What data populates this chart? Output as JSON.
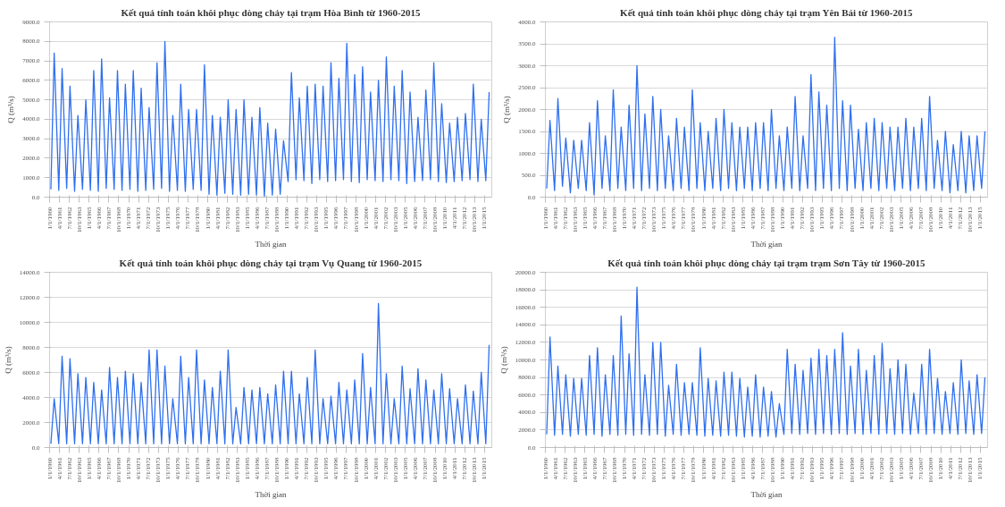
{
  "chart_data": [
    {
      "type": "line",
      "title": "Kết quả tính toán khôi phục dòng chảy tại trạm Hòa Bình từ 1960-2015",
      "xlabel": "Thời gian",
      "ylabel": "Q (m³/s)",
      "x": [
        "1960-03",
        "1960-08",
        "1961-03",
        "1961-08",
        "1962-03",
        "1962-08",
        "1963-03",
        "1963-08",
        "1964-03",
        "1964-08",
        "1965-03",
        "1965-08",
        "1966-03",
        "1966-08",
        "1967-03",
        "1967-08",
        "1968-03",
        "1968-08",
        "1969-03",
        "1969-08",
        "1970-03",
        "1970-08",
        "1971-03",
        "1971-08",
        "1972-03",
        "1972-08",
        "1973-03",
        "1973-08",
        "1974-03",
        "1974-08",
        "1975-03",
        "1975-08",
        "1976-03",
        "1976-08",
        "1977-03",
        "1977-08",
        "1978-03",
        "1978-08",
        "1979-03",
        "1979-08",
        "1980-03",
        "1980-08",
        "1981-03",
        "1981-08",
        "1982-03",
        "1982-08",
        "1983-03",
        "1983-08",
        "1984-03",
        "1984-08",
        "1985-03",
        "1985-08",
        "1986-03",
        "1986-08",
        "1987-03",
        "1987-08",
        "1988-03",
        "1988-08",
        "1989-03",
        "1989-08",
        "1990-03",
        "1990-08",
        "1991-03",
        "1991-08",
        "1992-03",
        "1992-08",
        "1993-03",
        "1993-08",
        "1994-03",
        "1994-08",
        "1995-03",
        "1995-08",
        "1996-03",
        "1996-08",
        "1997-03",
        "1997-08",
        "1998-03",
        "1998-08",
        "1999-03",
        "1999-08",
        "2000-03",
        "2000-08",
        "2001-03",
        "2001-08",
        "2002-03",
        "2002-08",
        "2003-03",
        "2003-08",
        "2004-03",
        "2004-08",
        "2005-03",
        "2005-08",
        "2006-03",
        "2006-08",
        "2007-03",
        "2007-08",
        "2008-03",
        "2008-08",
        "2009-03",
        "2009-08",
        "2010-03",
        "2010-08",
        "2011-03",
        "2011-08",
        "2012-03",
        "2012-08",
        "2013-03",
        "2013-08",
        "2014-03",
        "2014-08",
        "2015-03",
        "2015-08"
      ],
      "series": [
        {
          "color": "#2e6ff0",
          "values": [
            400,
            7400,
            350,
            6600,
            450,
            5700,
            300,
            4200,
            400,
            5000,
            350,
            6500,
            300,
            7100,
            450,
            5100,
            400,
            6500,
            350,
            5800,
            400,
            6500,
            300,
            5600,
            350,
            4600,
            400,
            6900,
            450,
            8000,
            300,
            4200,
            350,
            5800,
            300,
            4500,
            400,
            4500,
            350,
            6800,
            150,
            4200,
            100,
            4100,
            200,
            5000,
            150,
            4500,
            100,
            5000,
            150,
            4100,
            100,
            4600,
            50,
            3800,
            100,
            3500,
            150,
            2900,
            800,
            6400,
            900,
            5100,
            850,
            5700,
            700,
            5800,
            900,
            5700,
            800,
            6900,
            850,
            6100,
            900,
            7900,
            800,
            6300,
            750,
            6700,
            900,
            5400,
            850,
            6000,
            800,
            7200,
            900,
            5700,
            850,
            6500,
            700,
            5400,
            800,
            4100,
            850,
            5500,
            900,
            6900,
            800,
            4800,
            750,
            3800,
            800,
            4100,
            850,
            4300,
            900,
            5800,
            800,
            4000,
            850,
            5400
          ]
        }
      ],
      "xlim": [
        "1960-01",
        "2015-12"
      ],
      "xticks": [
        {
          "value": "1960-01",
          "label": "1/1/1960"
        },
        {
          "value": "1961-04",
          "label": "4/1/1961"
        },
        {
          "value": "1962-07",
          "label": "7/1/1962"
        },
        {
          "value": "1963-10",
          "label": "10/1/1963"
        },
        {
          "value": "1965-01",
          "label": "1/1/1965"
        },
        {
          "value": "1966-04",
          "label": "4/1/1966"
        },
        {
          "value": "1967-07",
          "label": "7/1/1967"
        },
        {
          "value": "1968-10",
          "label": "10/1/1968"
        },
        {
          "value": "1970-01",
          "label": "1/1/1970"
        },
        {
          "value": "1971-04",
          "label": "4/1/1971"
        },
        {
          "value": "1972-07",
          "label": "7/1/1972"
        },
        {
          "value": "1973-10",
          "label": "10/1/1973"
        },
        {
          "value": "1975-01",
          "label": "1/1/1975"
        },
        {
          "value": "1976-04",
          "label": "4/1/1976"
        },
        {
          "value": "1977-07",
          "label": "7/1/1977"
        },
        {
          "value": "1978-10",
          "label": "10/1/1978"
        },
        {
          "value": "1980-01",
          "label": "1/1/1980"
        },
        {
          "value": "1981-04",
          "label": "4/1/1981"
        },
        {
          "value": "1982-07",
          "label": "7/1/1982"
        },
        {
          "value": "1983-10",
          "label": "10/1/1983"
        },
        {
          "value": "1985-01",
          "label": "1/1/1985"
        },
        {
          "value": "1986-04",
          "label": "4/1/1986"
        },
        {
          "value": "1987-07",
          "label": "7/1/1987"
        },
        {
          "value": "1988-10",
          "label": "10/1/1988"
        },
        {
          "value": "1990-01",
          "label": "1/1/1990"
        },
        {
          "value": "1991-04",
          "label": "4/1/1991"
        },
        {
          "value": "1992-07",
          "label": "7/1/1992"
        },
        {
          "value": "1993-10",
          "label": "10/1/1993"
        },
        {
          "value": "1995-01",
          "label": "1/1/1995"
        },
        {
          "value": "1996-04",
          "label": "4/1/1996"
        },
        {
          "value": "1997-07",
          "label": "7/1/1997"
        },
        {
          "value": "1998-10",
          "label": "10/1/1998"
        },
        {
          "value": "2000-01",
          "label": "1/1/2000"
        },
        {
          "value": "2001-04",
          "label": "4/1/2001"
        },
        {
          "value": "2002-07",
          "label": "7/1/2002"
        },
        {
          "value": "2003-10",
          "label": "10/1/2003"
        },
        {
          "value": "2005-01",
          "label": "1/1/2005"
        },
        {
          "value": "2006-04",
          "label": "4/1/2006"
        },
        {
          "value": "2007-07",
          "label": "7/1/2007"
        },
        {
          "value": "2008-10",
          "label": "10/1/2008"
        },
        {
          "value": "2010-01",
          "label": "1/1/2010"
        },
        {
          "value": "2011-04",
          "label": "4/1/2011"
        },
        {
          "value": "2012-07",
          "label": "7/1/2012"
        },
        {
          "value": "2013-10",
          "label": "10/1/2013"
        },
        {
          "value": "2015-01",
          "label": "1/1/2015"
        }
      ],
      "ylim": [
        0,
        9000
      ],
      "yticks": [
        {
          "value": 0,
          "label": "0.0"
        },
        {
          "value": 1000,
          "label": "1000.0"
        },
        {
          "value": 2000,
          "label": "2000.0"
        },
        {
          "value": 3000,
          "label": "3000.0"
        },
        {
          "value": 4000,
          "label": "4000.0"
        },
        {
          "value": 5000,
          "label": "5000.0"
        },
        {
          "value": 6000,
          "label": "6000.0"
        },
        {
          "value": 7000,
          "label": "7000.0"
        },
        {
          "value": 8000,
          "label": "8000.0"
        },
        {
          "value": 9000,
          "label": "9000.0"
        }
      ],
      "grid": "y"
    },
    {
      "type": "line",
      "title": "Kết quả tính toán khôi phục dòng chảy tại trạm Yên Bái từ 1960-2015",
      "xlabel": "Thời gian",
      "ylabel": "Q (m³/s)",
      "x": [
        "1960-03",
        "1960-08",
        "1961-03",
        "1961-08",
        "1962-03",
        "1962-08",
        "1963-03",
        "1963-08",
        "1964-03",
        "1964-08",
        "1965-03",
        "1965-08",
        "1966-03",
        "1966-08",
        "1967-03",
        "1967-08",
        "1968-03",
        "1968-08",
        "1969-03",
        "1969-08",
        "1970-03",
        "1970-08",
        "1971-03",
        "1971-08",
        "1972-03",
        "1972-08",
        "1973-03",
        "1973-08",
        "1974-03",
        "1974-08",
        "1975-03",
        "1975-08",
        "1976-03",
        "1976-08",
        "1977-03",
        "1977-08",
        "1978-03",
        "1978-08",
        "1979-03",
        "1979-08",
        "1980-03",
        "1980-08",
        "1981-03",
        "1981-08",
        "1982-03",
        "1982-08",
        "1983-03",
        "1983-08",
        "1984-03",
        "1984-08",
        "1985-03",
        "1985-08",
        "1986-03",
        "1986-08",
        "1987-03",
        "1987-08",
        "1988-03",
        "1988-08",
        "1989-03",
        "1989-08",
        "1990-03",
        "1990-08",
        "1991-03",
        "1991-08",
        "1992-03",
        "1992-08",
        "1993-03",
        "1993-08",
        "1994-03",
        "1994-08",
        "1995-03",
        "1995-08",
        "1996-03",
        "1996-08",
        "1997-03",
        "1997-08",
        "1998-03",
        "1998-08",
        "1999-03",
        "1999-08",
        "2000-03",
        "2000-08",
        "2001-03",
        "2001-08",
        "2002-03",
        "2002-08",
        "2003-03",
        "2003-08",
        "2004-03",
        "2004-08",
        "2005-03",
        "2005-08",
        "2006-03",
        "2006-08",
        "2007-03",
        "2007-08",
        "2008-03",
        "2008-08",
        "2009-03",
        "2009-08",
        "2010-03",
        "2010-08",
        "2011-03",
        "2011-08",
        "2012-03",
        "2012-08",
        "2013-03",
        "2013-08",
        "2014-03",
        "2014-08",
        "2015-03",
        "2015-08"
      ],
      "series": [
        {
          "color": "#2e6ff0",
          "values": [
            200,
            1750,
            150,
            2250,
            250,
            1350,
            100,
            1300,
            200,
            1300,
            150,
            1700,
            50,
            2200,
            200,
            1400,
            150,
            2450,
            200,
            1600,
            150,
            2100,
            200,
            3000,
            150,
            1900,
            200,
            2300,
            150,
            2000,
            200,
            1400,
            150,
            1800,
            200,
            1600,
            150,
            2450,
            200,
            1700,
            150,
            1500,
            200,
            1800,
            150,
            2000,
            200,
            1700,
            150,
            1600,
            200,
            1600,
            150,
            1700,
            200,
            1700,
            150,
            2000,
            200,
            1400,
            150,
            1600,
            200,
            2300,
            150,
            1400,
            200,
            2800,
            150,
            2400,
            200,
            2100,
            150,
            3650,
            200,
            2200,
            150,
            2100,
            200,
            1550,
            150,
            1700,
            200,
            1800,
            150,
            1700,
            200,
            1600,
            150,
            1600,
            200,
            1800,
            150,
            1600,
            200,
            1800,
            150,
            2300,
            200,
            1300,
            150,
            1500,
            100,
            1200,
            150,
            1500,
            100,
            1400,
            150,
            1400,
            200,
            1500
          ]
        }
      ],
      "xlim": [
        "1960-01",
        "2015-12"
      ],
      "xticks": [
        {
          "value": "1960-01",
          "label": "1/1/1960"
        },
        {
          "value": "1961-04",
          "label": "4/1/1961"
        },
        {
          "value": "1962-07",
          "label": "7/1/1962"
        },
        {
          "value": "1963-10",
          "label": "10/1/1963"
        },
        {
          "value": "1965-01",
          "label": "1/1/1965"
        },
        {
          "value": "1966-04",
          "label": "4/1/1966"
        },
        {
          "value": "1967-07",
          "label": "7/1/1967"
        },
        {
          "value": "1968-10",
          "label": "10/1/1968"
        },
        {
          "value": "1970-01",
          "label": "1/1/1970"
        },
        {
          "value": "1971-04",
          "label": "4/1/1971"
        },
        {
          "value": "1972-07",
          "label": "7/1/1972"
        },
        {
          "value": "1973-10",
          "label": "10/1/1973"
        },
        {
          "value": "1975-01",
          "label": "1/1/1975"
        },
        {
          "value": "1976-04",
          "label": "4/1/1976"
        },
        {
          "value": "1977-07",
          "label": "7/1/1977"
        },
        {
          "value": "1978-10",
          "label": "10/1/1978"
        },
        {
          "value": "1980-01",
          "label": "1/1/1980"
        },
        {
          "value": "1981-04",
          "label": "4/1/1981"
        },
        {
          "value": "1982-07",
          "label": "7/1/1982"
        },
        {
          "value": "1983-10",
          "label": "10/1/1983"
        },
        {
          "value": "1985-01",
          "label": "1/1/1985"
        },
        {
          "value": "1986-04",
          "label": "4/1/1986"
        },
        {
          "value": "1987-07",
          "label": "7/1/1987"
        },
        {
          "value": "1988-10",
          "label": "10/1/1988"
        },
        {
          "value": "1990-01",
          "label": "1/1/1990"
        },
        {
          "value": "1991-04",
          "label": "4/1/1991"
        },
        {
          "value": "1992-07",
          "label": "7/1/1992"
        },
        {
          "value": "1993-10",
          "label": "10/1/1993"
        },
        {
          "value": "1995-01",
          "label": "1/1/1995"
        },
        {
          "value": "1996-04",
          "label": "4/1/1996"
        },
        {
          "value": "1997-07",
          "label": "7/1/1997"
        },
        {
          "value": "1998-10",
          "label": "10/1/1998"
        },
        {
          "value": "2000-01",
          "label": "1/1/2000"
        },
        {
          "value": "2001-04",
          "label": "4/1/2001"
        },
        {
          "value": "2002-07",
          "label": "7/1/2002"
        },
        {
          "value": "2003-10",
          "label": "10/1/2003"
        },
        {
          "value": "2005-01",
          "label": "1/1/2005"
        },
        {
          "value": "2006-04",
          "label": "4/1/2006"
        },
        {
          "value": "2007-07",
          "label": "7/1/2007"
        },
        {
          "value": "2008-10",
          "label": "10/1/2008"
        },
        {
          "value": "2010-01",
          "label": "1/1/2010"
        },
        {
          "value": "2011-04",
          "label": "4/1/2011"
        },
        {
          "value": "2012-07",
          "label": "7/1/2012"
        },
        {
          "value": "2013-10",
          "label": "10/1/2013"
        },
        {
          "value": "2015-01",
          "label": "1/1/2015"
        }
      ],
      "ylim": [
        0,
        4000
      ],
      "yticks": [
        {
          "value": 0,
          "label": "0.0"
        },
        {
          "value": 500,
          "label": "500.0"
        },
        {
          "value": 1000,
          "label": "1000.0"
        },
        {
          "value": 1500,
          "label": "1500.0"
        },
        {
          "value": 2000,
          "label": "2000.0"
        },
        {
          "value": 2500,
          "label": "2500.0"
        },
        {
          "value": 3000,
          "label": "3000.0"
        },
        {
          "value": 3500,
          "label": "3500.0"
        },
        {
          "value": 4000,
          "label": "4000.0"
        }
      ],
      "grid": "y"
    },
    {
      "type": "line",
      "title": "Kết quả tính toán khôi phục dòng chảy tại trạm Vụ Quang từ 1960-2015",
      "xlabel": "Thời gian",
      "ylabel": "Q (m³/s)",
      "x": [
        "1960-03",
        "1960-08",
        "1961-03",
        "1961-08",
        "1962-03",
        "1962-08",
        "1963-03",
        "1963-08",
        "1964-03",
        "1964-08",
        "1965-03",
        "1965-08",
        "1966-03",
        "1966-08",
        "1967-03",
        "1967-08",
        "1968-03",
        "1968-08",
        "1969-03",
        "1969-08",
        "1970-03",
        "1970-08",
        "1971-03",
        "1971-08",
        "1972-03",
        "1972-08",
        "1973-03",
        "1973-08",
        "1974-03",
        "1974-08",
        "1975-03",
        "1975-08",
        "1976-03",
        "1976-08",
        "1977-03",
        "1977-08",
        "1978-03",
        "1978-08",
        "1979-03",
        "1979-08",
        "1980-03",
        "1980-08",
        "1981-03",
        "1981-08",
        "1982-03",
        "1982-08",
        "1983-03",
        "1983-08",
        "1984-03",
        "1984-08",
        "1985-03",
        "1985-08",
        "1986-03",
        "1986-08",
        "1987-03",
        "1987-08",
        "1988-03",
        "1988-08",
        "1989-03",
        "1989-08",
        "1990-03",
        "1990-08",
        "1991-03",
        "1991-08",
        "1992-03",
        "1992-08",
        "1993-03",
        "1993-08",
        "1994-03",
        "1994-08",
        "1995-03",
        "1995-08",
        "1996-03",
        "1996-08",
        "1997-03",
        "1997-08",
        "1998-03",
        "1998-08",
        "1999-03",
        "1999-08",
        "2000-03",
        "2000-08",
        "2001-03",
        "2001-08",
        "2002-03",
        "2002-08",
        "2003-03",
        "2003-08",
        "2004-03",
        "2004-08",
        "2005-03",
        "2005-08",
        "2006-03",
        "2006-08",
        "2007-03",
        "2007-08",
        "2008-03",
        "2008-08",
        "2009-03",
        "2009-08",
        "2010-03",
        "2010-08",
        "2011-03",
        "2011-08",
        "2012-03",
        "2012-08",
        "2013-03",
        "2013-08",
        "2014-03",
        "2014-08",
        "2015-03",
        "2015-08"
      ],
      "series": [
        {
          "color": "#2e6ff0",
          "values": [
            300,
            3900,
            300,
            7300,
            300,
            7100,
            300,
            5900,
            300,
            5600,
            300,
            5200,
            300,
            4600,
            300,
            6400,
            300,
            5600,
            300,
            6100,
            300,
            5900,
            300,
            5200,
            300,
            7800,
            300,
            7800,
            300,
            6500,
            300,
            3900,
            300,
            7300,
            300,
            5600,
            300,
            7800,
            300,
            5400,
            300,
            4800,
            300,
            6100,
            300,
            7800,
            300,
            3200,
            300,
            4800,
            300,
            4600,
            300,
            4800,
            300,
            4300,
            300,
            5000,
            300,
            6100,
            300,
            6100,
            300,
            4300,
            300,
            5600,
            300,
            7800,
            300,
            3900,
            300,
            4100,
            300,
            5200,
            300,
            4600,
            300,
            5400,
            300,
            7500,
            300,
            4800,
            300,
            11500,
            300,
            5900,
            300,
            3900,
            300,
            6500,
            300,
            4700,
            300,
            6300,
            300,
            5400,
            300,
            4600,
            300,
            5900,
            300,
            4700,
            300,
            3900,
            300,
            5000,
            300,
            4500,
            300,
            6000,
            300,
            8200
          ]
        }
      ],
      "xlim": [
        "1960-01",
        "2015-12"
      ],
      "xticks": [
        {
          "value": "1960-01",
          "label": "1/1/1960"
        },
        {
          "value": "1961-04",
          "label": "4/1/1961"
        },
        {
          "value": "1962-07",
          "label": "7/1/1962"
        },
        {
          "value": "1963-10",
          "label": "10/1/1963"
        },
        {
          "value": "1965-01",
          "label": "1/1/1965"
        },
        {
          "value": "1966-04",
          "label": "4/1/1966"
        },
        {
          "value": "1967-07",
          "label": "7/1/1967"
        },
        {
          "value": "1968-10",
          "label": "10/1/1968"
        },
        {
          "value": "1970-01",
          "label": "1/1/1970"
        },
        {
          "value": "1971-04",
          "label": "4/1/1971"
        },
        {
          "value": "1972-07",
          "label": "7/1/1972"
        },
        {
          "value": "1973-10",
          "label": "10/1/1973"
        },
        {
          "value": "1975-01",
          "label": "1/1/1975"
        },
        {
          "value": "1976-04",
          "label": "4/1/1976"
        },
        {
          "value": "1977-07",
          "label": "7/1/1977"
        },
        {
          "value": "1978-10",
          "label": "10/1/1978"
        },
        {
          "value": "1980-01",
          "label": "1/1/1980"
        },
        {
          "value": "1981-04",
          "label": "4/1/1981"
        },
        {
          "value": "1982-07",
          "label": "7/1/1982"
        },
        {
          "value": "1983-10",
          "label": "10/1/1983"
        },
        {
          "value": "1985-01",
          "label": "1/1/1985"
        },
        {
          "value": "1986-04",
          "label": "4/1/1986"
        },
        {
          "value": "1987-07",
          "label": "7/1/1987"
        },
        {
          "value": "1988-10",
          "label": "10/1/1988"
        },
        {
          "value": "1990-01",
          "label": "1/1/1990"
        },
        {
          "value": "1991-04",
          "label": "4/1/1991"
        },
        {
          "value": "1992-07",
          "label": "7/1/1992"
        },
        {
          "value": "1993-10",
          "label": "10/1/1993"
        },
        {
          "value": "1995-01",
          "label": "1/1/1995"
        },
        {
          "value": "1996-04",
          "label": "4/1/1996"
        },
        {
          "value": "1997-07",
          "label": "7/1/1997"
        },
        {
          "value": "1998-10",
          "label": "10/1/1998"
        },
        {
          "value": "2000-01",
          "label": "1/1/2000"
        },
        {
          "value": "2001-04",
          "label": "4/1/2001"
        },
        {
          "value": "2002-07",
          "label": "7/1/2002"
        },
        {
          "value": "2003-10",
          "label": "10/1/2003"
        },
        {
          "value": "2005-01",
          "label": "1/1/2005"
        },
        {
          "value": "2006-04",
          "label": "4/1/2006"
        },
        {
          "value": "2007-07",
          "label": "7/1/2007"
        },
        {
          "value": "2008-10",
          "label": "10/1/2008"
        },
        {
          "value": "2010-01",
          "label": "1/1/2010"
        },
        {
          "value": "2011-04",
          "label": "4/1/2011"
        },
        {
          "value": "2012-07",
          "label": "7/1/2012"
        },
        {
          "value": "2013-10",
          "label": "10/1/2013"
        },
        {
          "value": "2015-01",
          "label": "1/1/2015"
        }
      ],
      "ylim": [
        0,
        14000
      ],
      "yticks": [
        {
          "value": 0,
          "label": "0.0"
        },
        {
          "value": 2000,
          "label": "2000.0"
        },
        {
          "value": 4000,
          "label": "4000.0"
        },
        {
          "value": 6000,
          "label": "6000.0"
        },
        {
          "value": 8000,
          "label": "8000.0"
        },
        {
          "value": 10000,
          "label": "10000.0"
        },
        {
          "value": 12000,
          "label": "12000.0"
        },
        {
          "value": 14000,
          "label": "14000.0"
        }
      ],
      "grid": "y"
    },
    {
      "type": "line",
      "title": "Kết quả tính toán khôi phục dòng chảy tại trạm trạm Sơn Tây từ 1960-2015",
      "xlabel": "Thời gian",
      "ylabel": "Q (m³/s)",
      "x": [
        "1960-03",
        "1960-08",
        "1961-03",
        "1961-08",
        "1962-03",
        "1962-08",
        "1963-03",
        "1963-08",
        "1964-03",
        "1964-08",
        "1965-03",
        "1965-08",
        "1966-03",
        "1966-08",
        "1967-03",
        "1967-08",
        "1968-03",
        "1968-08",
        "1969-03",
        "1969-08",
        "1970-03",
        "1970-08",
        "1971-03",
        "1971-08",
        "1972-03",
        "1972-08",
        "1973-03",
        "1973-08",
        "1974-03",
        "1974-08",
        "1975-03",
        "1975-08",
        "1976-03",
        "1976-08",
        "1977-03",
        "1977-08",
        "1978-03",
        "1978-08",
        "1979-03",
        "1979-08",
        "1980-03",
        "1980-08",
        "1981-03",
        "1981-08",
        "1982-03",
        "1982-08",
        "1983-03",
        "1983-08",
        "1984-03",
        "1984-08",
        "1985-03",
        "1985-08",
        "1986-03",
        "1986-08",
        "1987-03",
        "1987-08",
        "1988-03",
        "1988-08",
        "1989-03",
        "1989-08",
        "1990-03",
        "1990-08",
        "1991-03",
        "1991-08",
        "1992-03",
        "1992-08",
        "1993-03",
        "1993-08",
        "1994-03",
        "1994-08",
        "1995-03",
        "1995-08",
        "1996-03",
        "1996-08",
        "1997-03",
        "1997-08",
        "1998-03",
        "1998-08",
        "1999-03",
        "1999-08",
        "2000-03",
        "2000-08",
        "2001-03",
        "2001-08",
        "2002-03",
        "2002-08",
        "2003-03",
        "2003-08",
        "2004-03",
        "2004-08",
        "2005-03",
        "2005-08",
        "2006-03",
        "2006-08",
        "2007-03",
        "2007-08",
        "2008-03",
        "2008-08",
        "2009-03",
        "2009-08",
        "2010-03",
        "2010-08",
        "2011-03",
        "2011-08",
        "2012-03",
        "2012-08",
        "2013-03",
        "2013-08",
        "2014-03",
        "2014-08",
        "2015-03",
        "2015-08"
      ],
      "series": [
        {
          "color": "#2e6ff0",
          "values": [
            1500,
            12600,
            1400,
            9300,
            1500,
            8300,
            1300,
            7900,
            1500,
            7900,
            1400,
            10500,
            1500,
            11400,
            1300,
            8300,
            1500,
            10500,
            1400,
            15000,
            1500,
            10700,
            1400,
            18300,
            1500,
            8300,
            1400,
            12000,
            1500,
            12000,
            1300,
            7100,
            1500,
            9500,
            1400,
            7400,
            1500,
            7400,
            1400,
            11400,
            1300,
            7900,
            1400,
            7600,
            1300,
            8600,
            1400,
            8600,
            1300,
            7900,
            1200,
            6900,
            1300,
            8300,
            1200,
            6900,
            1300,
            6400,
            1200,
            5000,
            1500,
            11200,
            1600,
            9500,
            1500,
            8800,
            1600,
            10200,
            1500,
            11200,
            1600,
            10500,
            1500,
            11200,
            1600,
            13100,
            1500,
            9300,
            1600,
            11200,
            1500,
            8800,
            1600,
            10500,
            1500,
            11900,
            1600,
            9000,
            1500,
            10000,
            1600,
            9500,
            1500,
            6200,
            1600,
            9500,
            1500,
            11200,
            1600,
            7900,
            1500,
            6400,
            1600,
            7400,
            1500,
            10000,
            1600,
            7600,
            1500,
            8300,
            1600,
            8000
          ]
        }
      ],
      "xlim": [
        "1960-01",
        "2015-12"
      ],
      "xticks": [
        {
          "value": "1960-01",
          "label": "1/1/1960"
        },
        {
          "value": "1961-04",
          "label": "4/1/1961"
        },
        {
          "value": "1962-07",
          "label": "7/1/1962"
        },
        {
          "value": "1963-10",
          "label": "10/1/1963"
        },
        {
          "value": "1965-01",
          "label": "1/1/1965"
        },
        {
          "value": "1966-04",
          "label": "4/1/1966"
        },
        {
          "value": "1967-07",
          "label": "7/1/1967"
        },
        {
          "value": "1968-10",
          "label": "10/1/1968"
        },
        {
          "value": "1970-01",
          "label": "1/1/1970"
        },
        {
          "value": "1971-04",
          "label": "4/1/1971"
        },
        {
          "value": "1972-07",
          "label": "7/1/1972"
        },
        {
          "value": "1973-10",
          "label": "10/1/1973"
        },
        {
          "value": "1975-01",
          "label": "1/1/1975"
        },
        {
          "value": "1976-04",
          "label": "4/1/1976"
        },
        {
          "value": "1977-07",
          "label": "7/1/1977"
        },
        {
          "value": "1978-10",
          "label": "10/1/1978"
        },
        {
          "value": "1980-01",
          "label": "1/1/1980"
        },
        {
          "value": "1981-04",
          "label": "4/1/1981"
        },
        {
          "value": "1982-07",
          "label": "7/1/1982"
        },
        {
          "value": "1983-10",
          "label": "10/1/1983"
        },
        {
          "value": "1985-01",
          "label": "1/1/1985"
        },
        {
          "value": "1986-04",
          "label": "4/1/1986"
        },
        {
          "value": "1987-07",
          "label": "7/1/1987"
        },
        {
          "value": "1988-10",
          "label": "10/1/1988"
        },
        {
          "value": "1990-01",
          "label": "1/1/1990"
        },
        {
          "value": "1991-04",
          "label": "4/1/1991"
        },
        {
          "value": "1992-07",
          "label": "7/1/1992"
        },
        {
          "value": "1993-10",
          "label": "10/1/1993"
        },
        {
          "value": "1995-01",
          "label": "1/1/1995"
        },
        {
          "value": "1996-04",
          "label": "4/1/1996"
        },
        {
          "value": "1997-07",
          "label": "7/1/1997"
        },
        {
          "value": "1998-10",
          "label": "10/1/1998"
        },
        {
          "value": "2000-01",
          "label": "1/1/2000"
        },
        {
          "value": "2001-04",
          "label": "4/1/2001"
        },
        {
          "value": "2002-07",
          "label": "7/1/2002"
        },
        {
          "value": "2003-10",
          "label": "10/1/2003"
        },
        {
          "value": "2005-01",
          "label": "1/1/2005"
        },
        {
          "value": "2006-04",
          "label": "4/1/2006"
        },
        {
          "value": "2007-07",
          "label": "7/1/2007"
        },
        {
          "value": "2008-10",
          "label": "10/1/2008"
        },
        {
          "value": "2010-01",
          "label": "1/1/2010"
        },
        {
          "value": "2011-04",
          "label": "4/1/2011"
        },
        {
          "value": "2012-07",
          "label": "7/1/2012"
        },
        {
          "value": "2013-10",
          "label": "10/1/2013"
        },
        {
          "value": "2015-01",
          "label": "1/1/2015"
        }
      ],
      "ylim": [
        0,
        20000
      ],
      "yticks": [
        {
          "value": 0,
          "label": "0.0"
        },
        {
          "value": 2000,
          "label": "2000.0"
        },
        {
          "value": 4000,
          "label": "4000.0"
        },
        {
          "value": 6000,
          "label": "6000.0"
        },
        {
          "value": 8000,
          "label": "8000.0"
        },
        {
          "value": 10000,
          "label": "10000.0"
        },
        {
          "value": 12000,
          "label": "12000.0"
        },
        {
          "value": 14000,
          "label": "14000.0"
        },
        {
          "value": 16000,
          "label": "16000.0"
        },
        {
          "value": 18000,
          "label": "18000.0"
        },
        {
          "value": 20000,
          "label": "20000.0"
        }
      ],
      "grid": "y"
    }
  ]
}
